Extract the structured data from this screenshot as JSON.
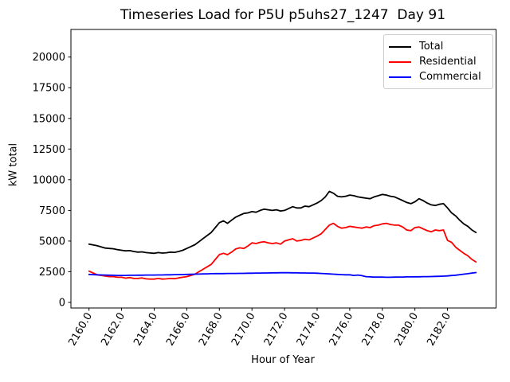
{
  "chart_data": {
    "type": "line",
    "title": "Timeseries Load for P5U p5uhs27_1247  Day 91",
    "xlabel": "Hour of Year",
    "ylabel": "kW total",
    "grid": false,
    "legend_position": "upper right",
    "xlim": [
      2158.89,
      2184.98
    ],
    "ylim": [
      -455,
      22250
    ],
    "x_ticks": [
      2160,
      2162,
      2164,
      2166,
      2168,
      2170,
      2172,
      2174,
      2176,
      2178,
      2180,
      2182
    ],
    "x_tick_labels": [
      "2160.0",
      "2162.0",
      "2164.0",
      "2166.0",
      "2168.0",
      "2170.0",
      "2172.0",
      "2174.0",
      "2176.0",
      "2178.0",
      "2180.0",
      "2182.0"
    ],
    "y_ticks": [
      0,
      2500,
      5000,
      7500,
      10000,
      12500,
      15000,
      17500,
      20000
    ],
    "y_tick_labels": [
      "0",
      "2500",
      "5000",
      "7500",
      "10000",
      "12500",
      "15000",
      "17500",
      "20000"
    ],
    "x": [
      2160,
      2160.25,
      2160.5,
      2160.75,
      2161,
      2161.25,
      2161.5,
      2161.75,
      2162,
      2162.25,
      2162.5,
      2162.75,
      2163,
      2163.25,
      2163.5,
      2163.75,
      2164,
      2164.25,
      2164.5,
      2164.75,
      2165,
      2165.25,
      2165.5,
      2165.75,
      2166,
      2166.25,
      2166.5,
      2166.75,
      2167,
      2167.25,
      2167.5,
      2167.75,
      2168,
      2168.25,
      2168.5,
      2168.75,
      2169,
      2169.25,
      2169.5,
      2169.75,
      2170,
      2170.25,
      2170.5,
      2170.75,
      2171,
      2171.25,
      2171.5,
      2171.75,
      2172,
      2172.25,
      2172.5,
      2172.75,
      2173,
      2173.25,
      2173.5,
      2173.75,
      2174,
      2174.25,
      2174.5,
      2174.75,
      2175,
      2175.25,
      2175.5,
      2175.75,
      2176,
      2176.25,
      2176.5,
      2176.75,
      2177,
      2177.25,
      2177.5,
      2177.75,
      2178,
      2178.25,
      2178.5,
      2178.75,
      2179,
      2179.25,
      2179.5,
      2179.75,
      2180,
      2180.25,
      2180.5,
      2180.75,
      2181,
      2181.25,
      2181.5,
      2181.75,
      2182,
      2182.25,
      2182.5,
      2182.75,
      2183,
      2183.25,
      2183.5,
      2183.75
    ],
    "series": [
      {
        "name": "Total",
        "color": "#000000",
        "values": [
          4750,
          4680,
          4620,
          4520,
          4430,
          4400,
          4370,
          4300,
          4250,
          4200,
          4220,
          4150,
          4100,
          4120,
          4060,
          4030,
          4000,
          4060,
          4020,
          4050,
          4100,
          4080,
          4150,
          4250,
          4400,
          4550,
          4700,
          4950,
          5200,
          5450,
          5700,
          6100,
          6500,
          6650,
          6450,
          6700,
          6950,
          7100,
          7250,
          7300,
          7400,
          7350,
          7500,
          7600,
          7550,
          7500,
          7550,
          7450,
          7500,
          7650,
          7800,
          7700,
          7700,
          7850,
          7800,
          7950,
          8100,
          8300,
          8600,
          9050,
          8900,
          8650,
          8600,
          8650,
          8750,
          8700,
          8600,
          8550,
          8500,
          8450,
          8600,
          8700,
          8800,
          8750,
          8650,
          8600,
          8450,
          8300,
          8150,
          8050,
          8200,
          8450,
          8300,
          8100,
          7950,
          7900,
          8000,
          8050,
          7700,
          7300,
          7050,
          6700,
          6400,
          6200,
          5900,
          5700
        ]
      },
      {
        "name": "Residential",
        "color": "#ff0000",
        "values": [
          2550,
          2400,
          2250,
          2200,
          2150,
          2100,
          2100,
          2050,
          2050,
          1980,
          2020,
          1950,
          1950,
          2000,
          1920,
          1900,
          1900,
          1950,
          1900,
          1920,
          1950,
          1930,
          2000,
          2050,
          2100,
          2200,
          2300,
          2500,
          2700,
          2900,
          3100,
          3500,
          3900,
          4000,
          3890,
          4100,
          4350,
          4450,
          4400,
          4600,
          4850,
          4800,
          4900,
          4950,
          4850,
          4800,
          4850,
          4750,
          5000,
          5100,
          5190,
          5000,
          5050,
          5150,
          5100,
          5250,
          5400,
          5600,
          5950,
          6300,
          6450,
          6200,
          6050,
          6100,
          6200,
          6150,
          6100,
          6050,
          6150,
          6100,
          6250,
          6300,
          6400,
          6450,
          6350,
          6300,
          6300,
          6150,
          5900,
          5850,
          6100,
          6150,
          6000,
          5850,
          5750,
          5900,
          5850,
          5900,
          5050,
          4900,
          4500,
          4250,
          4000,
          3800,
          3500,
          3300
        ]
      },
      {
        "name": "Commercial",
        "color": "#0000ff",
        "values": [
          2280,
          2260,
          2250,
          2240,
          2230,
          2220,
          2210,
          2200,
          2200,
          2200,
          2210,
          2210,
          2220,
          2220,
          2230,
          2230,
          2230,
          2240,
          2240,
          2250,
          2250,
          2260,
          2270,
          2270,
          2280,
          2290,
          2300,
          2310,
          2320,
          2330,
          2340,
          2350,
          2350,
          2350,
          2360,
          2360,
          2360,
          2370,
          2370,
          2380,
          2380,
          2390,
          2390,
          2400,
          2400,
          2410,
          2410,
          2420,
          2420,
          2420,
          2410,
          2410,
          2400,
          2400,
          2390,
          2390,
          2380,
          2360,
          2340,
          2320,
          2300,
          2280,
          2260,
          2250,
          2250,
          2200,
          2230,
          2180,
          2100,
          2080,
          2060,
          2060,
          2060,
          2050,
          2050,
          2060,
          2070,
          2070,
          2080,
          2080,
          2090,
          2090,
          2100,
          2100,
          2110,
          2120,
          2130,
          2140,
          2160,
          2190,
          2220,
          2260,
          2300,
          2340,
          2390,
          2430
        ]
      }
    ]
  }
}
